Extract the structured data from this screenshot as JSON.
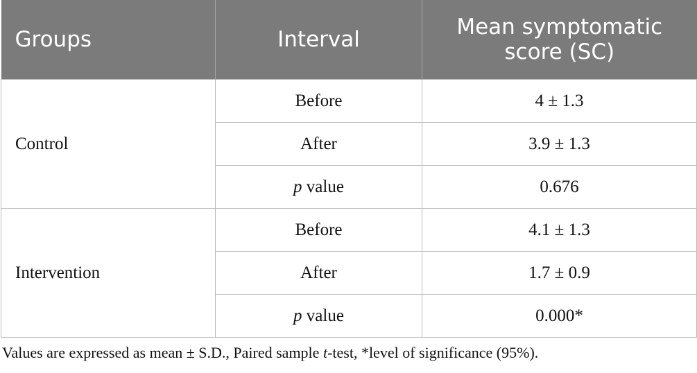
{
  "table": {
    "headers": [
      "Groups",
      "Interval",
      "Mean symptomatic score (SC)"
    ],
    "groups": [
      {
        "name": "Control",
        "rows": [
          {
            "interval": "Before",
            "score": "4 ± 1.3"
          },
          {
            "interval_italic": "p",
            "interval": " value",
            "score": "0.676"
          },
          {
            "interval": "After",
            "score": "3.9 ± 1.3"
          }
        ]
      },
      {
        "name": "Intervention",
        "rows": [
          {
            "interval": "Before",
            "score": "4.1 ± 1.3"
          },
          {
            "interval": "After",
            "score": "1.7 ± 0.9"
          },
          {
            "interval_italic": "p",
            "interval": " value",
            "score": "0.000*"
          }
        ]
      }
    ]
  },
  "footnote": {
    "part1": "Values are expressed as mean ± S.D., Paired sample ",
    "italic": "t",
    "part2": "-test, *level of significance (95%)."
  }
}
